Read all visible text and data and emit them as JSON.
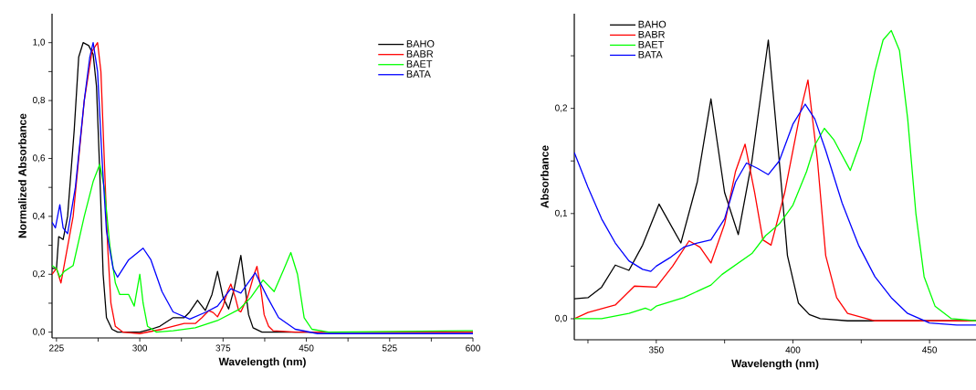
{
  "chart_data": [
    {
      "type": "line",
      "xlabel": "Wavelength (nm)",
      "ylabel": "Normalized Absorbance",
      "xlim": [
        221,
        600
      ],
      "ylim": [
        -0.02,
        1.1
      ],
      "xticks": [
        225,
        {
          "value": 262.5,
          "label": null
        },
        300,
        {
          "value": 337.5,
          "label": null
        },
        375,
        {
          "value": 412.5,
          "label": null
        },
        450,
        {
          "value": 487.5,
          "label": null
        },
        525,
        {
          "value": 562.5,
          "label": null
        },
        600
      ],
      "yticks": [
        {
          "value": 0,
          "label": "0,0"
        },
        {
          "value": 0.1,
          "label": null
        },
        {
          "value": 0.2,
          "label": "0,2"
        },
        {
          "value": 0.3,
          "label": null
        },
        {
          "value": 0.4,
          "label": "0,4"
        },
        {
          "value": 0.5,
          "label": null
        },
        {
          "value": 0.6,
          "label": "0,6"
        },
        {
          "value": 0.7,
          "label": null
        },
        {
          "value": 0.8,
          "label": "0,8"
        },
        {
          "value": 0.9,
          "label": null
        },
        {
          "value": 1.0,
          "label": "1,0"
        }
      ],
      "legend": "top right",
      "grid": false,
      "line_style": "solid",
      "series": [
        {
          "name": "BAHO",
          "color": "#000000",
          "x": [
            221,
            225,
            227,
            231,
            235,
            241,
            245,
            249,
            254,
            258,
            261,
            264,
            267,
            270,
            275,
            280,
            300,
            310,
            318,
            330,
            340,
            345,
            352,
            359,
            365,
            370,
            375,
            380,
            385,
            391,
            395,
            398,
            402,
            410,
            450,
            600
          ],
          "values": [
            0.22,
            0.22,
            0.33,
            0.32,
            0.4,
            0.7,
            0.95,
            1.0,
            0.99,
            0.96,
            0.85,
            0.55,
            0.2,
            0.05,
            0.01,
            0.0,
            0.0,
            0.01,
            0.02,
            0.05,
            0.05,
            0.07,
            0.11,
            0.075,
            0.13,
            0.21,
            0.12,
            0.08,
            0.15,
            0.265,
            0.15,
            0.06,
            0.015,
            0.0,
            0.0,
            0.0
          ]
        },
        {
          "name": "BABR",
          "color": "#ff0000",
          "x": [
            221,
            225,
            229,
            240,
            250,
            257,
            262,
            265,
            268,
            271,
            274,
            278,
            285,
            300,
            320,
            340,
            350,
            356,
            362,
            366,
            370,
            375,
            379,
            382,
            386,
            389,
            391,
            397,
            403,
            405.5,
            409,
            412,
            416,
            420,
            440,
            600
          ],
          "values": [
            0.2,
            0.22,
            0.17,
            0.4,
            0.8,
            0.97,
            1.0,
            0.9,
            0.6,
            0.3,
            0.1,
            0.02,
            0.0,
            -0.005,
            0.01,
            0.03,
            0.03,
            0.05,
            0.074,
            0.068,
            0.053,
            0.09,
            0.14,
            0.166,
            0.12,
            0.075,
            0.07,
            0.12,
            0.2,
            0.227,
            0.15,
            0.06,
            0.02,
            0.005,
            0.0,
            0.0
          ]
        },
        {
          "name": "BAET",
          "color": "#00ff00",
          "x": [
            221,
            225,
            228,
            232,
            240,
            250,
            258,
            264,
            268,
            273,
            278,
            282,
            290,
            295,
            300,
            303,
            307,
            315,
            330,
            350,
            370,
            390,
            400,
            411,
            421,
            430,
            436,
            442,
            448,
            455,
            470,
            600
          ],
          "values": [
            0.23,
            0.22,
            0.19,
            0.21,
            0.23,
            0.4,
            0.52,
            0.58,
            0.5,
            0.3,
            0.17,
            0.13,
            0.13,
            0.09,
            0.2,
            0.1,
            0.02,
            0.0,
            0.005,
            0.015,
            0.04,
            0.08,
            0.12,
            0.18,
            0.14,
            0.22,
            0.275,
            0.2,
            0.05,
            0.01,
            0.0,
            0.005
          ]
        },
        {
          "name": "BATA",
          "color": "#0000ff",
          "x": [
            221,
            224,
            228,
            231,
            235,
            242,
            250,
            255,
            258,
            262,
            266,
            270,
            276,
            280,
            290,
            303,
            310,
            320,
            330,
            345,
            360,
            370,
            382,
            391,
            404,
            415,
            425,
            440,
            460,
            600
          ],
          "values": [
            0.38,
            0.36,
            0.44,
            0.36,
            0.34,
            0.5,
            0.8,
            0.95,
            1.0,
            0.9,
            0.6,
            0.35,
            0.22,
            0.19,
            0.25,
            0.29,
            0.25,
            0.14,
            0.07,
            0.045,
            0.07,
            0.09,
            0.15,
            0.135,
            0.205,
            0.12,
            0.05,
            0.01,
            -0.005,
            -0.005
          ]
        }
      ]
    },
    {
      "type": "line",
      "xlabel": "Wavelength (nm)",
      "ylabel": "Absorbance",
      "xlim": [
        320,
        467
      ],
      "ylim": [
        -0.02,
        0.29
      ],
      "xticks": [
        {
          "value": 325,
          "label": null
        },
        350,
        {
          "value": 375,
          "label": null
        },
        400,
        {
          "value": 425,
          "label": null
        },
        450
      ],
      "yticks": [
        {
          "value": 0,
          "label": "0,0"
        },
        {
          "value": 0.05,
          "label": null
        },
        {
          "value": 0.1,
          "label": "0,1"
        },
        {
          "value": 0.15,
          "label": null
        },
        {
          "value": 0.2,
          "label": "0,2"
        },
        {
          "value": 0.25,
          "label": null
        }
      ],
      "legend": "top left",
      "grid": false,
      "line_style": "solid",
      "series": [
        {
          "name": "BAHO",
          "color": "#000000",
          "x": [
            320,
            325,
            330,
            335,
            340,
            345,
            351,
            359,
            365,
            370,
            375,
            380,
            385,
            391,
            395,
            398,
            402,
            406,
            410,
            420,
            467
          ],
          "values": [
            0.019,
            0.02,
            0.03,
            0.051,
            0.046,
            0.07,
            0.109,
            0.072,
            0.13,
            0.209,
            0.12,
            0.08,
            0.15,
            0.265,
            0.15,
            0.06,
            0.015,
            0.004,
            0.0,
            -0.002,
            -0.002
          ]
        },
        {
          "name": "BABR",
          "color": "#ff0000",
          "x": [
            320,
            325,
            335,
            342,
            350,
            356,
            362,
            366,
            370,
            375,
            379,
            382.5,
            386,
            389,
            392,
            397,
            403,
            405.5,
            409,
            412,
            416,
            420,
            430,
            467
          ],
          "values": [
            0.0,
            0.006,
            0.013,
            0.031,
            0.03,
            0.05,
            0.074,
            0.068,
            0.053,
            0.09,
            0.14,
            0.166,
            0.12,
            0.075,
            0.07,
            0.12,
            0.2,
            0.227,
            0.15,
            0.06,
            0.02,
            0.005,
            -0.002,
            -0.002
          ]
        },
        {
          "name": "BAET",
          "color": "#00ff00",
          "x": [
            320,
            330,
            340,
            346,
            348,
            350,
            360,
            370,
            374,
            385,
            390,
            395,
            400,
            405,
            408,
            411.5,
            415,
            421,
            425,
            430,
            433,
            436,
            439,
            442,
            445,
            448,
            452,
            458,
            467
          ],
          "values": [
            0.0,
            0.0,
            0.005,
            0.01,
            0.008,
            0.012,
            0.02,
            0.032,
            0.042,
            0.062,
            0.079,
            0.09,
            0.108,
            0.14,
            0.165,
            0.181,
            0.17,
            0.141,
            0.17,
            0.235,
            0.265,
            0.274,
            0.255,
            0.19,
            0.1,
            0.04,
            0.012,
            0.0,
            -0.002
          ]
        },
        {
          "name": "BATA",
          "color": "#0000ff",
          "x": [
            320,
            325,
            330,
            335,
            340,
            345,
            348,
            350,
            355,
            360,
            365,
            370,
            375,
            379,
            383,
            387,
            391,
            395,
            400,
            404.5,
            408,
            412,
            418,
            424,
            430,
            436,
            442,
            450,
            460,
            467
          ],
          "values": [
            0.158,
            0.125,
            0.095,
            0.072,
            0.055,
            0.047,
            0.045,
            0.05,
            0.058,
            0.068,
            0.072,
            0.075,
            0.095,
            0.13,
            0.148,
            0.143,
            0.137,
            0.15,
            0.185,
            0.204,
            0.19,
            0.16,
            0.11,
            0.07,
            0.04,
            0.02,
            0.005,
            -0.004,
            -0.006,
            -0.006
          ]
        }
      ]
    }
  ]
}
